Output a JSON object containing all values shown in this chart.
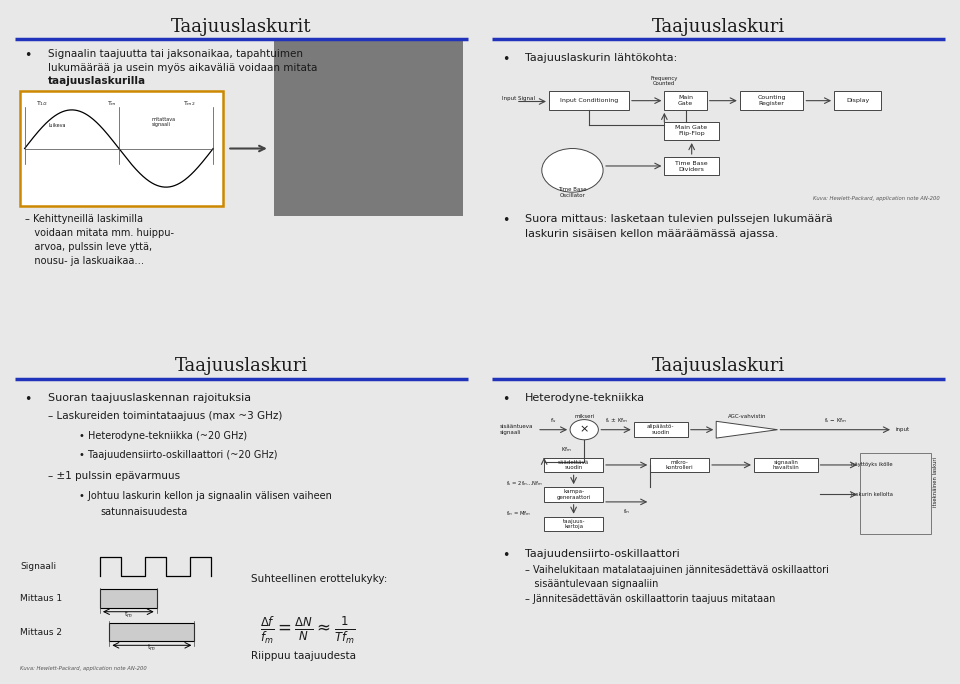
{
  "bg_color": "#e8e8e8",
  "panel_bg": "#ffffff",
  "blue_line_color": "#2233bb",
  "text_color": "#1a1a1a",
  "panels": [
    "Taajuuslaskurit",
    "Taajuuslaskuri",
    "Taajuuslaskuri",
    "Taajuuslaskuri"
  ],
  "panel1_bullet1a": "Signaalin taajuutta tai jaksonaikaa, tapahtuimen",
  "panel1_bullet1b": "lukumäärää ja usein myös aikaväliä voidaan mitata",
  "panel1_bullet1c": "taajuuslaskurilla",
  "panel1_sub": "– Kehittyneillä laskimilla\n   voidaan mitata mm. huippu-\n   arvoa, pulssin leve yttä,\n   nousu- ja laskuaikaa…",
  "panel2_b1": "Taajuuslaskurin lähtökohta:",
  "panel2_caption": "Kuva: Hewlett-Packard, application note AN-200",
  "panel2_b2a": "Suora mittaus: lasketaan tulevien pulssejen lukumäärä",
  "panel2_b2b": "laskurin sisäisen kellon määräämässä ajassa.",
  "panel3_b1": "Suoran taajuuslaskennan rajoituksia",
  "panel3_s1": "– Laskureiden toimintataajuus (max ~3 GHz)",
  "panel3_s2": "• Heterodyne-tekniikka (~20 GHz)",
  "panel3_s3": "• Taajuudensiirto-oskillaattori (~20 GHz)",
  "panel3_s4": "– ±1 pulssin epävarmuus",
  "panel3_s5a": "• Johtuu laskurin kellon ja signaalin välisen vaiheen",
  "panel3_s5b": "satunnaisuudesta",
  "panel3_sig": "Signaali",
  "panel3_m1": "Mittaus 1",
  "panel3_m2": "Mittaus 2",
  "panel3_formula_label": "Suhteellinen erottelukyky:",
  "panel3_riippuu": "Riippuu taajuudesta",
  "panel3_caption": "Kuva: Hewlett-Packard, application note AN-200",
  "panel4_b1": "Heterodyne-tekniikka",
  "panel4_b2": "Taajuudensiirto-oskillaattori",
  "panel4_s1a": "– Vaihelukitaan matalataajuinen jännitesädettävä oskillaattori",
  "panel4_s1b": "   sisääntulevaan signaaliin",
  "panel4_s2": "– Jännitesädettävän oskillaattorin taajuus mitataan"
}
